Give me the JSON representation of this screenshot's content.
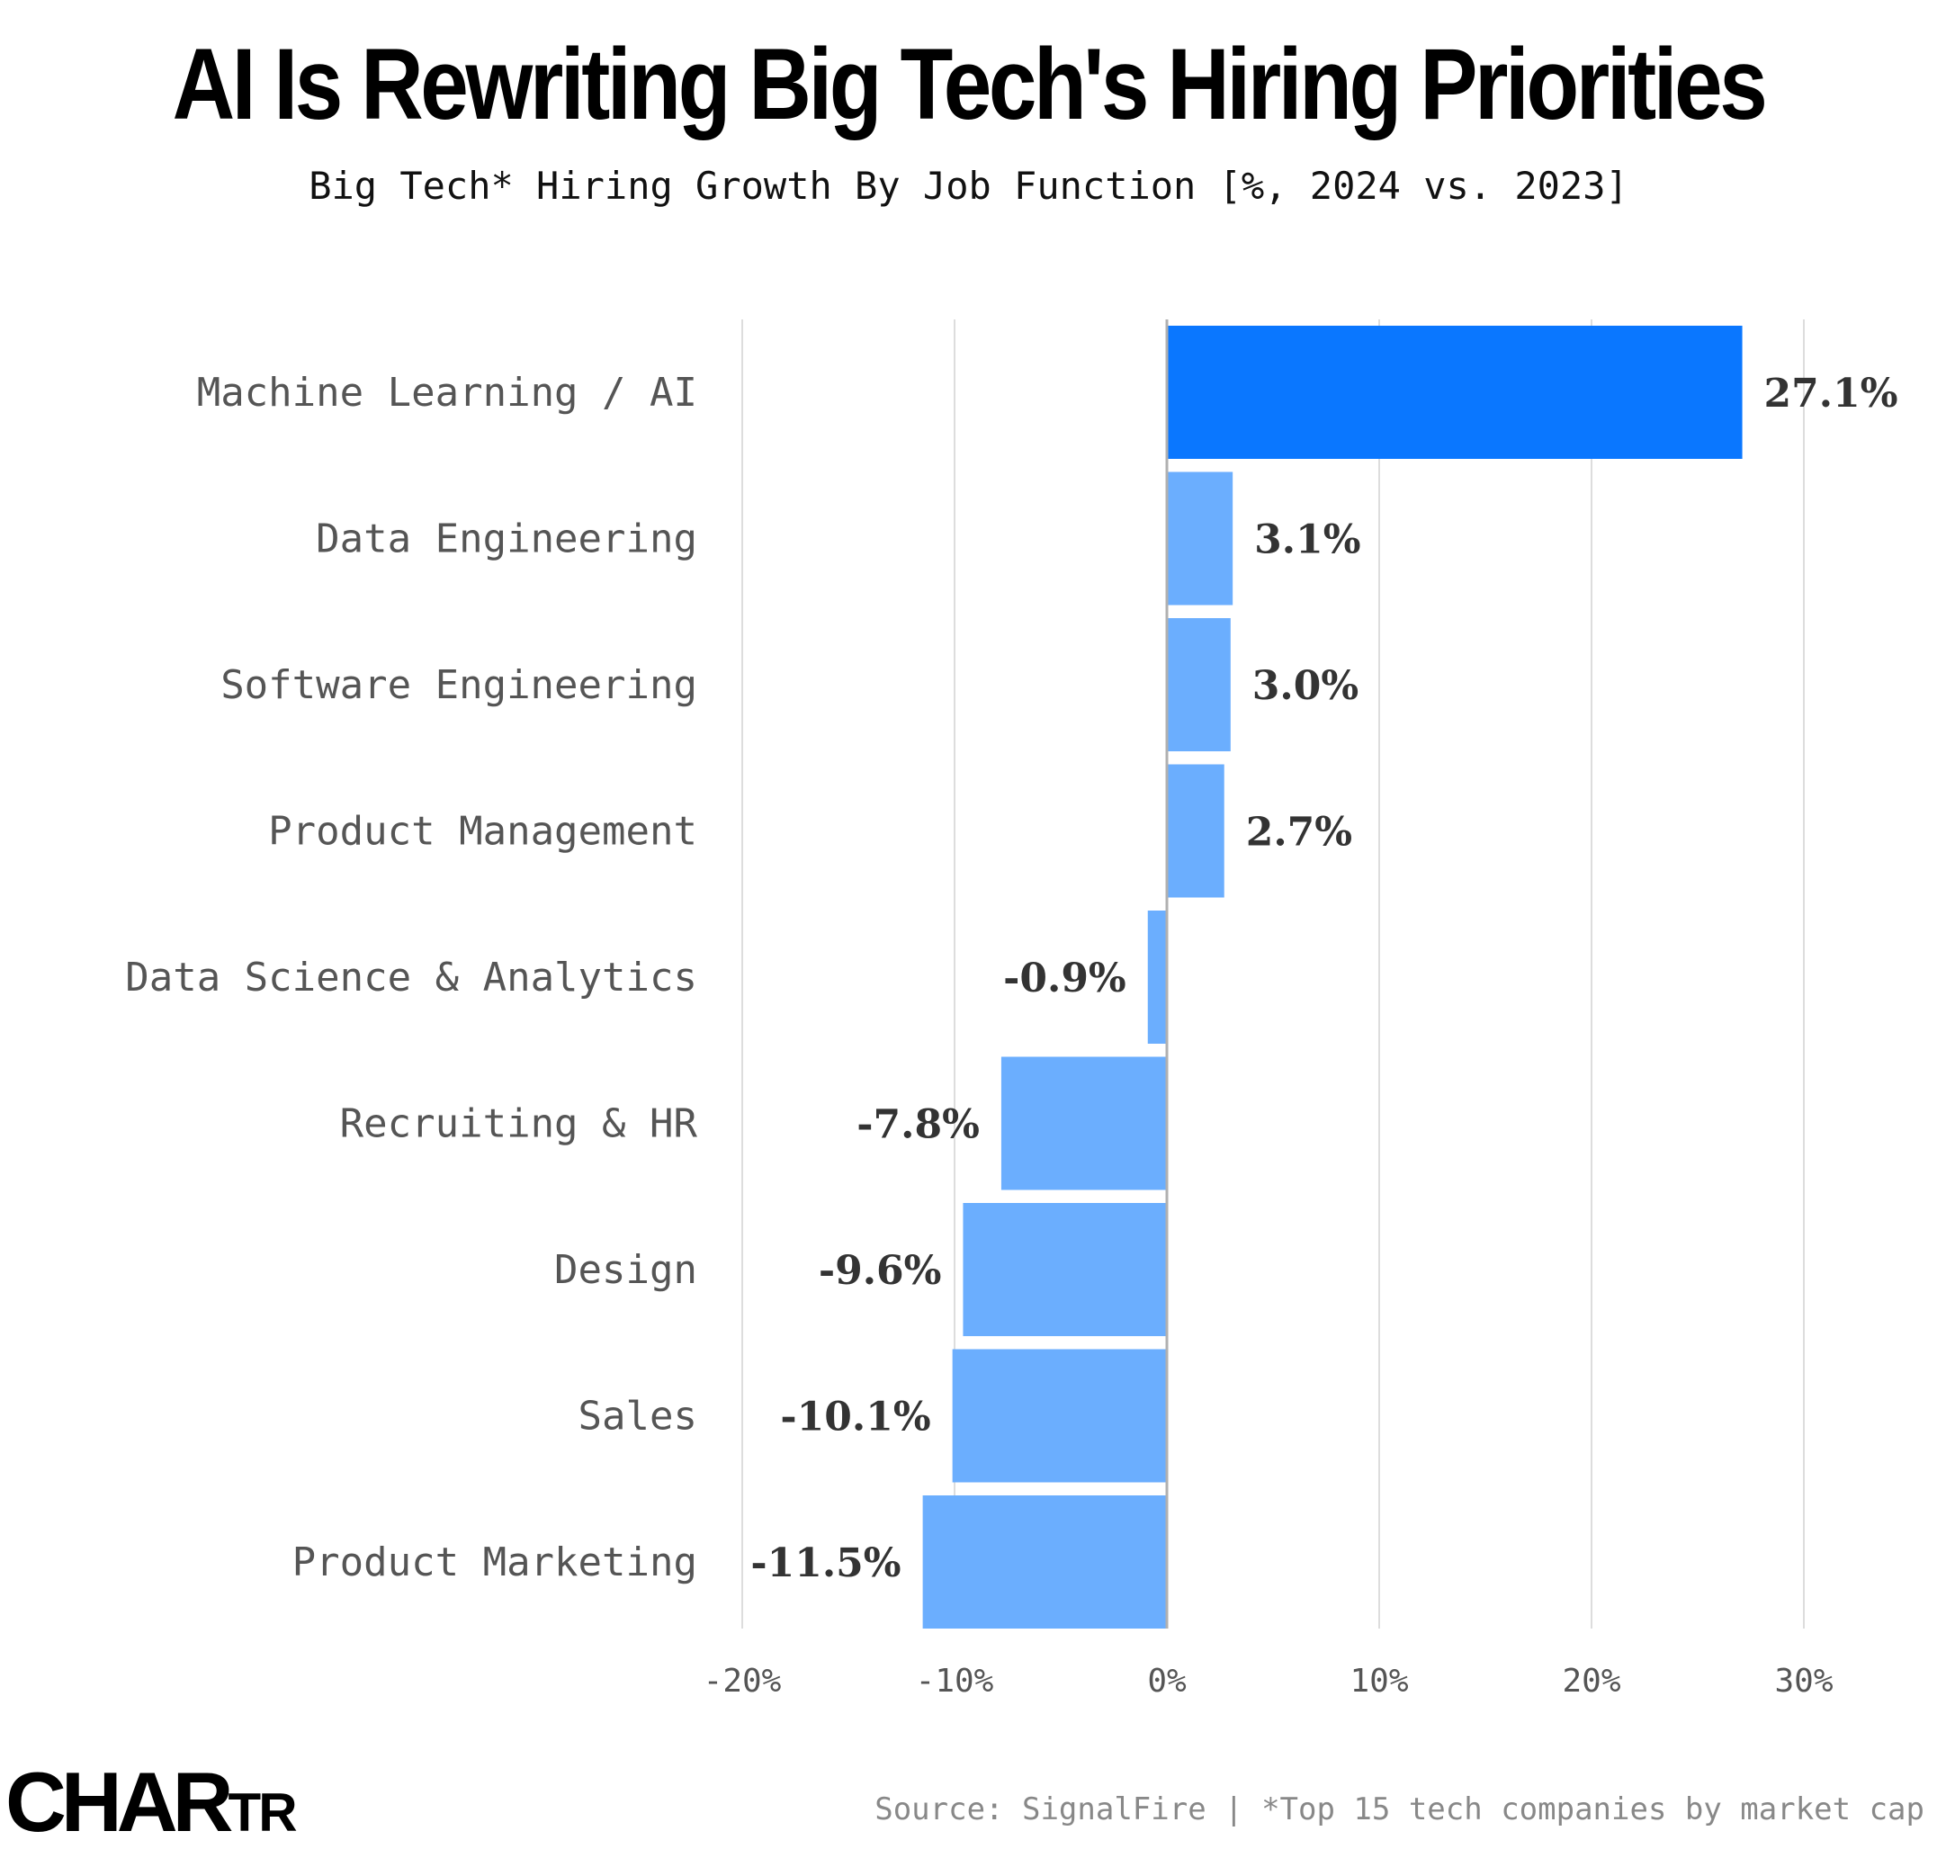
{
  "title": "AI Is Rewriting Big Tech's Hiring Priorities",
  "subtitle": "Big Tech* Hiring Growth By Job Function [%, 2024 vs. 2023]",
  "chart_data": {
    "type": "bar",
    "orientation": "horizontal",
    "title": "AI Is Rewriting Big Tech's Hiring Priorities",
    "subtitle": "Big Tech* Hiring Growth By Job Function [%, 2024 vs. 2023]",
    "categories": [
      "Machine Learning / AI",
      "Data Engineering",
      "Software Engineering",
      "Product Management",
      "Data Science & Analytics",
      "Recruiting & HR",
      "Design",
      "Sales",
      "Product Marketing"
    ],
    "values": [
      27.1,
      3.1,
      3.0,
      2.7,
      -0.9,
      -7.8,
      -9.6,
      -10.1,
      -11.5
    ],
    "value_labels": [
      "27.1%",
      "3.1%",
      "3.0%",
      "2.7%",
      "-0.9%",
      "-7.8%",
      "-9.6%",
      "-10.1%",
      "-11.5%"
    ],
    "highlight_index": 0,
    "xlim": [
      -20,
      30
    ],
    "xticks": [
      -20,
      -10,
      0,
      10,
      20,
      30
    ],
    "xtick_labels": [
      "-20%",
      "-10%",
      "0%",
      "10%",
      "20%",
      "30%"
    ],
    "xlabel": "",
    "ylabel": "",
    "grid": true,
    "colors": {
      "highlight": "#0a77ff",
      "default": "#6baefe",
      "grid": "#dddddd",
      "zero_line": "#b0b0b0"
    }
  },
  "footer": {
    "logo": {
      "main": "CHAR",
      "small": "TR"
    },
    "source": "Source: SignalFire | *Top 15 tech companies by market cap"
  }
}
